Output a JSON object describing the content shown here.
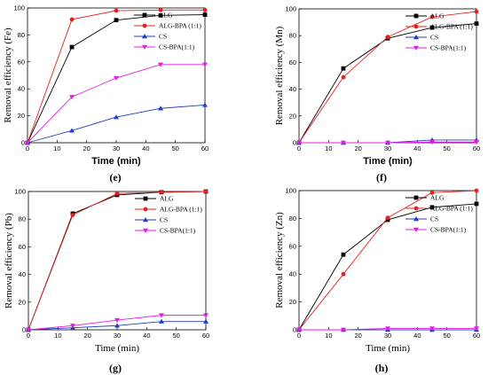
{
  "chart_data": [
    {
      "type": "line",
      "panel_label": "(e)",
      "xlabel": "Time (min)",
      "ylabel": "Removal efficiency (Fe)",
      "x": [
        0,
        15,
        30,
        45,
        60
      ],
      "xlim": [
        0,
        60
      ],
      "ylim": [
        0,
        100
      ],
      "xticks": [
        0,
        10,
        20,
        30,
        40,
        50,
        60
      ],
      "yticks": [
        0,
        20,
        40,
        60,
        80,
        100
      ],
      "bold_labels": true,
      "legend_position": "top-right",
      "series": [
        {
          "name": "ALG",
          "values": [
            0,
            71,
            91,
            94.5,
            95
          ],
          "color": "#000000",
          "marker": "square"
        },
        {
          "name": "ALG-BPA (1:1)",
          "values": [
            0,
            91.5,
            98,
            98.5,
            98.5
          ],
          "color": "#e8211e",
          "marker": "circle"
        },
        {
          "name": "CS",
          "values": [
            0,
            9,
            19,
            25.5,
            28
          ],
          "color": "#1f3fbf",
          "marker": "triangle-up"
        },
        {
          "name": "CS-BPA(1:1)",
          "values": [
            0,
            34,
            48,
            58,
            58
          ],
          "color": "#e31ee3",
          "marker": "triangle-down"
        }
      ]
    },
    {
      "type": "line",
      "panel_label": "(f)",
      "xlabel": "Time (min)",
      "ylabel": "Removal efficiency (Mn)",
      "x": [
        0,
        15,
        30,
        45,
        60
      ],
      "xlim": [
        0,
        60
      ],
      "ylim": [
        0,
        100
      ],
      "xticks": [
        0,
        10,
        20,
        30,
        40,
        50,
        60
      ],
      "yticks": [
        0,
        20,
        40,
        60,
        80,
        100
      ],
      "bold_labels": true,
      "legend_position": "top-right",
      "series": [
        {
          "name": "ALG",
          "values": [
            0,
            55.5,
            78,
            86,
            89
          ],
          "color": "#000000",
          "marker": "square"
        },
        {
          "name": "ALG-BPA (1:1)",
          "values": [
            0,
            49,
            79,
            94,
            98
          ],
          "color": "#e8211e",
          "marker": "circle"
        },
        {
          "name": "CS",
          "values": [
            0,
            0,
            0,
            2,
            2
          ],
          "color": "#1f3fbf",
          "marker": "triangle-up"
        },
        {
          "name": "CS-BPA(1:1)",
          "values": [
            0,
            0,
            0,
            0.5,
            0.5
          ],
          "color": "#e31ee3",
          "marker": "triangle-down"
        }
      ]
    },
    {
      "type": "line",
      "panel_label": "(g)",
      "xlabel": "Time (min)",
      "ylabel": "Removal efficiency (Pb)",
      "x": [
        0,
        15,
        30,
        45,
        60
      ],
      "xlim": [
        0,
        60
      ],
      "ylim": [
        0,
        100
      ],
      "xticks": [
        0,
        10,
        20,
        30,
        40,
        50,
        60
      ],
      "yticks": [
        0,
        20,
        40,
        60,
        80,
        100
      ],
      "bold_labels": false,
      "legend_position": "top-right",
      "series": [
        {
          "name": "ALG",
          "values": [
            0,
            84,
            97.5,
            99.5,
            100
          ],
          "color": "#000000",
          "marker": "square"
        },
        {
          "name": "ALG-BPA (1:1)",
          "values": [
            0,
            83,
            98.5,
            99.5,
            100
          ],
          "color": "#e8211e",
          "marker": "circle"
        },
        {
          "name": "CS",
          "values": [
            0,
            1.5,
            3,
            6,
            6
          ],
          "color": "#1f3fbf",
          "marker": "triangle-up"
        },
        {
          "name": "CS-BPA(1:1)",
          "values": [
            0,
            3,
            7,
            10.5,
            10.5
          ],
          "color": "#e31ee3",
          "marker": "triangle-down"
        }
      ]
    },
    {
      "type": "line",
      "panel_label": "(h)",
      "xlabel": "Time (min)",
      "ylabel": "Removal efficiency (Zn)",
      "x": [
        0,
        15,
        30,
        45,
        60
      ],
      "xlim": [
        0,
        60
      ],
      "ylim": [
        0,
        100
      ],
      "xticks": [
        0,
        10,
        20,
        30,
        40,
        50,
        60
      ],
      "yticks": [
        0,
        20,
        40,
        60,
        80,
        100
      ],
      "bold_labels": false,
      "legend_position": "top-right",
      "series": [
        {
          "name": "ALG",
          "values": [
            0,
            54,
            79,
            88,
            90.5
          ],
          "color": "#000000",
          "marker": "square"
        },
        {
          "name": "ALG-BPA (1:1)",
          "values": [
            0,
            40,
            80.5,
            98.5,
            100
          ],
          "color": "#e8211e",
          "marker": "circle"
        },
        {
          "name": "CS",
          "values": [
            0,
            0,
            0,
            0,
            0
          ],
          "color": "#1f3fbf",
          "marker": "triangle-up"
        },
        {
          "name": "CS-BPA(1:1)",
          "values": [
            0,
            0,
            1,
            1,
            1
          ],
          "color": "#e31ee3",
          "marker": "triangle-down"
        }
      ]
    }
  ]
}
